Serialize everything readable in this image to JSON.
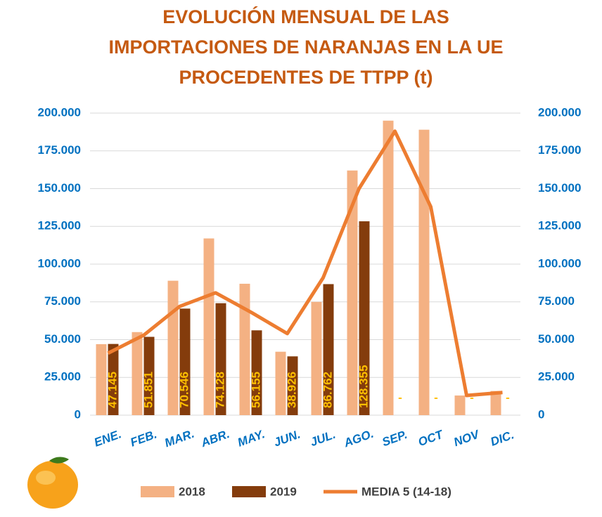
{
  "chart_data": {
    "type": "bar",
    "title_lines": [
      "EVOLUCIÓN MENSUAL DE LAS",
      "IMPORTACIONES DE NARANJAS EN LA UE",
      "PROCEDENTES DE TTPP (t)"
    ],
    "categories": [
      "ENE.",
      "FEB.",
      "MAR.",
      "ABR.",
      "MAY.",
      "JUN.",
      "JUL.",
      "AGO.",
      "SEP.",
      "OCT",
      "NOV",
      "DIC."
    ],
    "series": [
      {
        "name": "2018",
        "color": "#f4b183",
        "values": [
          47000,
          55000,
          89000,
          117000,
          87000,
          42000,
          75000,
          162000,
          195000,
          189000,
          13000,
          16000
        ]
      },
      {
        "name": "2019",
        "color": "#843c0c",
        "values": [
          47145,
          51851,
          70546,
          74128,
          56155,
          38926,
          86762,
          128355,
          null,
          null,
          null,
          null
        ],
        "value_labels": [
          "47.145",
          "51.851",
          "70.546",
          "74.128",
          "56.155",
          "38.926",
          "86.762",
          "128.355",
          "-",
          "-",
          "-",
          "-"
        ]
      },
      {
        "name": "MEDIA 5 (14-18)",
        "color": "#ed7d31",
        "type": "line",
        "axis": "y2",
        "values": [
          41000,
          53000,
          72000,
          81000,
          68000,
          54000,
          91000,
          150000,
          188000,
          138000,
          13000,
          15000
        ]
      }
    ],
    "ylim": [
      0,
      200000
    ],
    "yticks": [
      0,
      {
        "value": 25000,
        "label": "25.000"
      },
      {
        "value": 50000,
        "label": "50.000"
      },
      {
        "value": 75000,
        "label": "75.000"
      },
      {
        "value": 100000,
        "label": "100.000"
      },
      {
        "value": 125000,
        "label": "125.000"
      },
      {
        "value": 150000,
        "label": "150.000"
      },
      {
        "value": 175000,
        "label": "175.000"
      },
      {
        "value": 200000,
        "label": "200.000"
      }
    ],
    "y2lim": [
      0,
      200000
    ],
    "y2ticks": [
      0,
      {
        "value": 25000,
        "label": "25.000"
      },
      {
        "value": 50000,
        "label": "50.000"
      },
      {
        "value": 75000,
        "label": "75.000"
      },
      {
        "value": 100000,
        "label": "100.000"
      },
      {
        "value": 125000,
        "label": "125.000"
      },
      {
        "value": 150000,
        "label": "150.000"
      },
      {
        "value": 175000,
        "label": "175.000"
      },
      {
        "value": 200000,
        "label": "200.000"
      }
    ],
    "grid": true
  }
}
